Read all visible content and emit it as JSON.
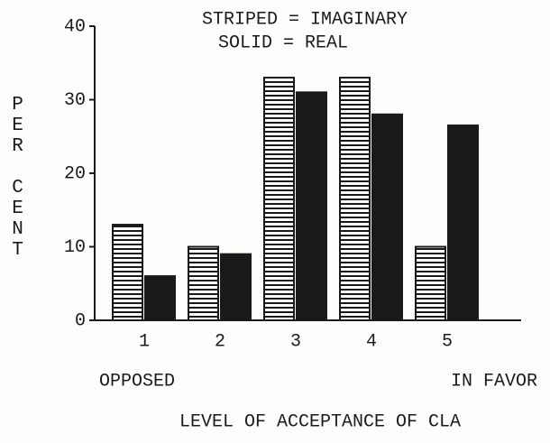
{
  "chart_data": {
    "type": "bar",
    "legend_lines": [
      "STRIPED = IMAGINARY",
      "SOLID = REAL"
    ],
    "y_label": "PER CENT",
    "x_label": "LEVEL OF ACCEPTANCE OF CLA",
    "annotations": [
      "OPPOSED",
      "IN FAVOR"
    ],
    "categories": [
      "1",
      "2",
      "3",
      "4",
      "5"
    ],
    "series": [
      {
        "name": "IMAGINARY",
        "color": "#1a1a1a",
        "fill": "striped",
        "values": [
          13,
          10,
          33,
          33,
          10
        ]
      },
      {
        "name": "REAL",
        "color": "#1a1a1a",
        "fill": "solid",
        "values": [
          6,
          9,
          31,
          28,
          26.5
        ]
      }
    ],
    "ylim": [
      0,
      40
    ],
    "yticks": [
      0,
      10,
      20,
      30,
      40
    ]
  }
}
